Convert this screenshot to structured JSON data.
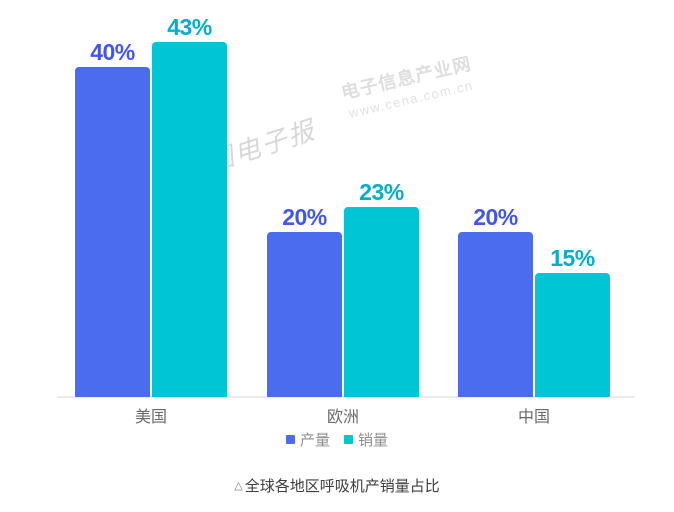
{
  "chart_data": {
    "type": "bar",
    "title": "全球各地区呼吸机产销量占比",
    "categories": [
      "美国",
      "欧洲",
      "中国"
    ],
    "series": [
      {
        "name": "产量",
        "values": [
          40,
          20,
          20
        ],
        "bar_color": "#4c6cf0",
        "label_color": "#4356e8"
      },
      {
        "name": "销量",
        "values": [
          43,
          23,
          15
        ],
        "bar_color": "#00c5d4",
        "label_color": "#00adca"
      }
    ],
    "value_suffix": "%",
    "ylim": [
      0,
      45
    ],
    "grid": false,
    "legend_position": "bottom",
    "axis_line_color": "#ebebeb",
    "category_label_color": "#6a6a6a",
    "legend_text_color": "#8e8e8e"
  },
  "watermarks": {
    "site_name": "电子信息产业网",
    "site_url": "www.cena.com.cn",
    "publication": "中国电子报"
  },
  "caption": {
    "marker": "△"
  }
}
